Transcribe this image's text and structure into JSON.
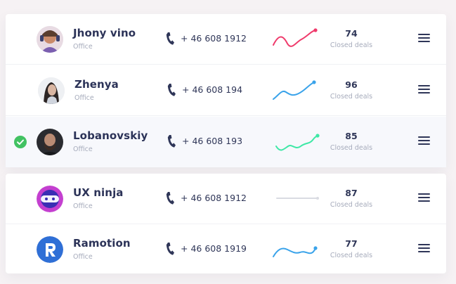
{
  "deals_label_text": "Closed deals",
  "contacts": [
    {
      "name": "Jhony vino",
      "role": "Office",
      "phone": "+ 46 608 1912",
      "closed_deals": "74",
      "spark_color": "#ef3a6b",
      "avatar": "person-with-headphones",
      "selected": false
    },
    {
      "name": "Zhenya",
      "role": "Office",
      "phone": "+ 46 608 194",
      "closed_deals": "96",
      "spark_color": "#3aa3ea",
      "avatar": "woman-portrait",
      "selected": false
    },
    {
      "name": "Lobanovskiy",
      "role": "Office",
      "phone": "+ 46 608 193",
      "closed_deals": "85",
      "spark_color": "#3ee8a6",
      "avatar": "bearded-man-portrait",
      "selected": true
    },
    {
      "name": "UX ninja",
      "role": "Office",
      "phone": "+ 46 608 1912",
      "closed_deals": "87",
      "spark_color": "#d9dbe2",
      "avatar": "ninja-logo",
      "selected": false
    },
    {
      "name": "Ramotion",
      "role": "Office",
      "phone": "+ 46 608 1919",
      "closed_deals": "77",
      "spark_color": "#3aa3ea",
      "avatar": "ramotion-logo",
      "selected": false
    }
  ]
}
